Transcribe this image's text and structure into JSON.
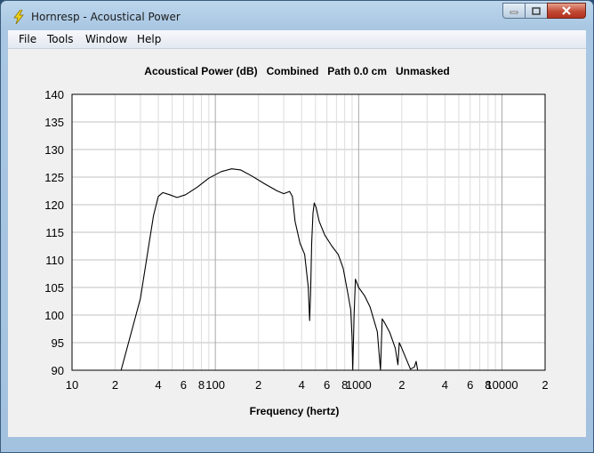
{
  "window": {
    "title": "Hornresp - Acoustical Power"
  },
  "menu": {
    "items": [
      "File",
      "Tools",
      "Window",
      "Help"
    ]
  },
  "icons": {
    "app": "lightning-bolt-icon",
    "minimize": "minimize-icon",
    "maximize": "maximize-icon",
    "close": "close-icon"
  },
  "colors": {
    "plot_background": "#ffffff",
    "gridline": "#c0c0c0",
    "curve": "#000000"
  },
  "chart_data": {
    "type": "line",
    "title": "Acoustical Power (dB)   Combined   Path 0.0 cm   Unmasked",
    "xlabel": "Frequency (hertz)",
    "ylabel": "",
    "xscale": "log",
    "xlim": [
      10,
      20000
    ],
    "ylim": [
      90,
      140
    ],
    "yticks": [
      140,
      135,
      130,
      125,
      120,
      115,
      110,
      105,
      100,
      95,
      90
    ],
    "xtick_labels": [
      {
        "f": 10,
        "label": "10"
      },
      {
        "f": 20,
        "label": "2"
      },
      {
        "f": 40,
        "label": "4"
      },
      {
        "f": 60,
        "label": "6"
      },
      {
        "f": 80,
        "label": "8"
      },
      {
        "f": 100,
        "label": "100"
      },
      {
        "f": 200,
        "label": "2"
      },
      {
        "f": 400,
        "label": "4"
      },
      {
        "f": 600,
        "label": "6"
      },
      {
        "f": 800,
        "label": "8"
      },
      {
        "f": 1000,
        "label": "1000"
      },
      {
        "f": 2000,
        "label": "2"
      },
      {
        "f": 4000,
        "label": "4"
      },
      {
        "f": 6000,
        "label": "6"
      },
      {
        "f": 8000,
        "label": "8"
      },
      {
        "f": 10000,
        "label": "10000"
      },
      {
        "f": 20000,
        "label": "2"
      }
    ],
    "grid": true,
    "series": [
      {
        "points": [
          [
            22,
            90
          ],
          [
            26,
            97
          ],
          [
            30,
            103
          ],
          [
            34,
            112
          ],
          [
            37,
            118
          ],
          [
            40,
            121.5
          ],
          [
            43,
            122.2
          ],
          [
            48,
            121.8
          ],
          [
            54,
            121.3
          ],
          [
            62,
            121.8
          ],
          [
            75,
            123.2
          ],
          [
            90,
            124.8
          ],
          [
            110,
            126
          ],
          [
            130,
            126.5
          ],
          [
            150,
            126.3
          ],
          [
            180,
            125.2
          ],
          [
            220,
            123.8
          ],
          [
            270,
            122.5
          ],
          [
            300,
            122
          ],
          [
            330,
            122.4
          ],
          [
            345,
            121.5
          ],
          [
            360,
            117
          ],
          [
            390,
            113
          ],
          [
            420,
            111
          ],
          [
            445,
            105
          ],
          [
            455,
            99
          ],
          [
            462,
            104
          ],
          [
            470,
            113
          ],
          [
            480,
            118.5
          ],
          [
            490,
            120.3
          ],
          [
            505,
            119.5
          ],
          [
            530,
            117
          ],
          [
            580,
            114.5
          ],
          [
            650,
            112.5
          ],
          [
            720,
            111
          ],
          [
            780,
            108.5
          ],
          [
            840,
            104
          ],
          [
            880,
            101
          ],
          [
            900,
            96
          ],
          [
            910,
            90
          ],
          [
            930,
            100
          ],
          [
            950,
            106.5
          ],
          [
            1000,
            105
          ],
          [
            1100,
            103.5
          ],
          [
            1200,
            101.5
          ],
          [
            1350,
            97
          ],
          [
            1420,
            90
          ],
          [
            1460,
            99.3
          ],
          [
            1520,
            98.6
          ],
          [
            1650,
            96.8
          ],
          [
            1800,
            94
          ],
          [
            1880,
            91
          ],
          [
            1920,
            95
          ],
          [
            2000,
            94
          ],
          [
            2150,
            92
          ],
          [
            2300,
            90.2
          ],
          [
            2450,
            90.6
          ],
          [
            2520,
            91.6
          ],
          [
            2580,
            90
          ]
        ]
      }
    ]
  }
}
